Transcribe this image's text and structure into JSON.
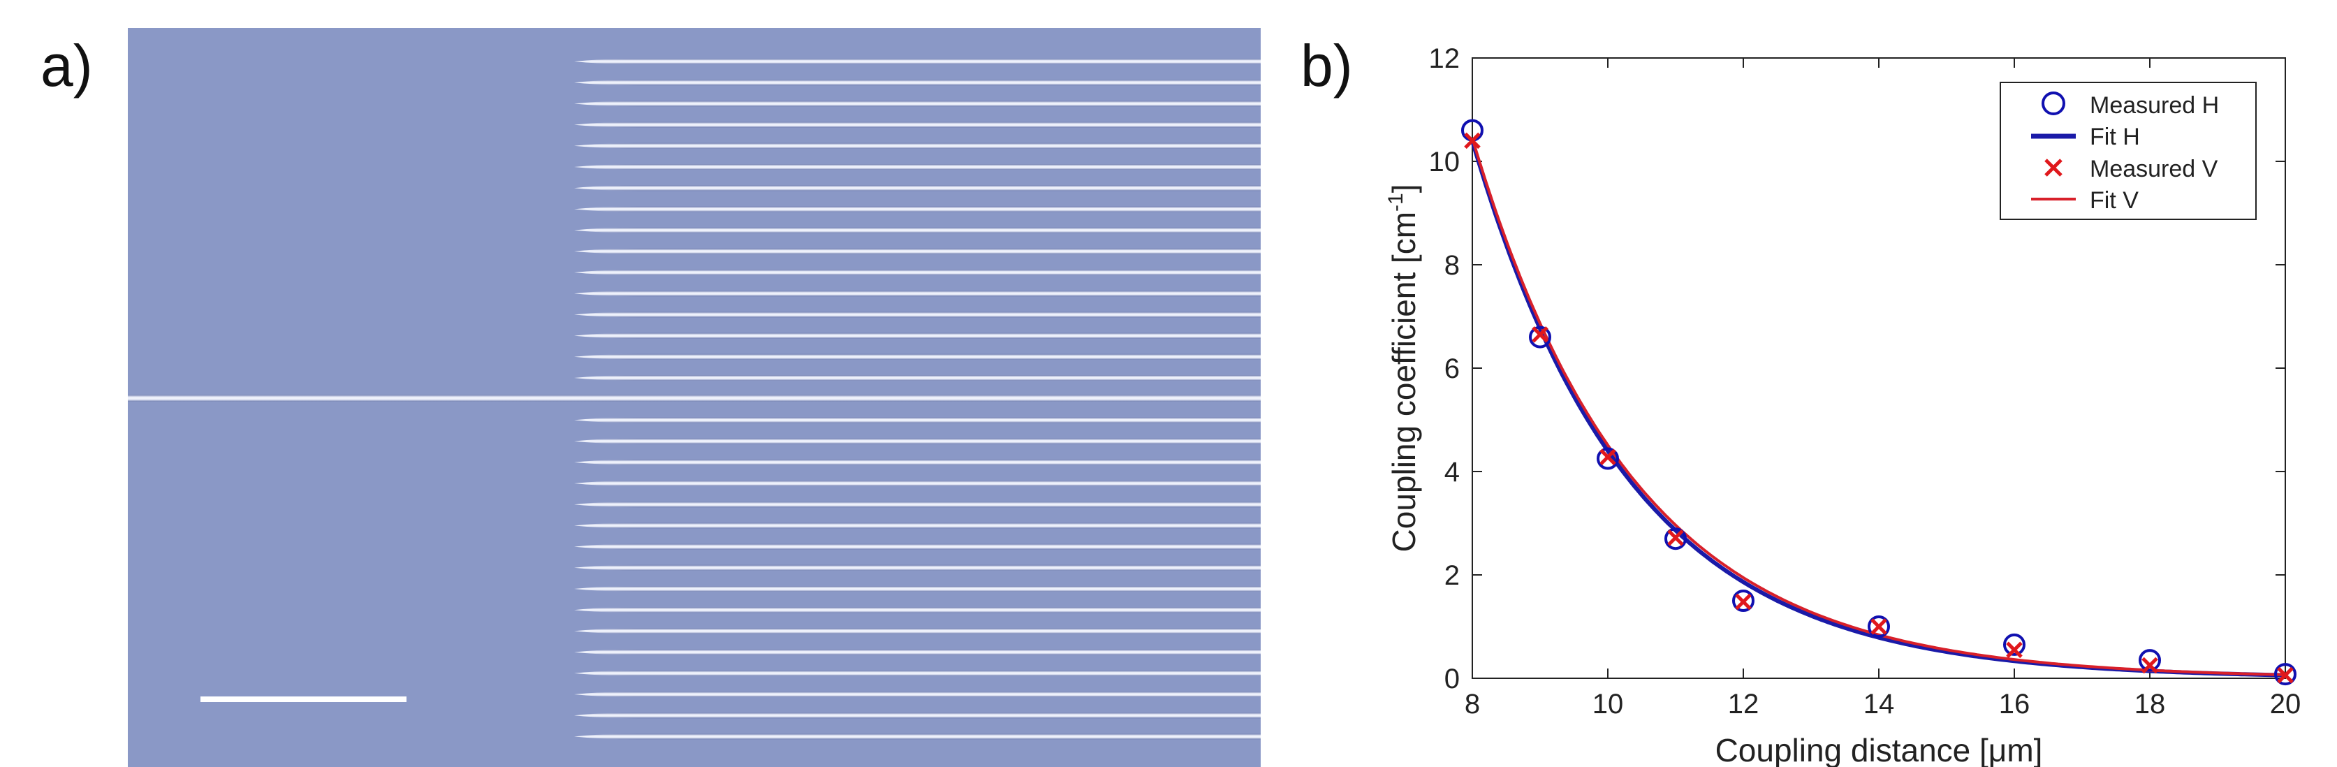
{
  "panel_labels": {
    "a": "a)",
    "b": "b)"
  },
  "colors": {
    "micrograph_bg": "#8a98c6",
    "waveguide_light": "#e8ecf8",
    "waveguide_dark": "#6f7db0",
    "scale_bar": "#ffffff",
    "measured_h": "#1010b0",
    "fit_h": "#1a1aa8",
    "measured_v": "#e0181c",
    "fit_v": "#d8202a",
    "axes": "#222222"
  },
  "chart_data": {
    "type": "scatter",
    "title": "",
    "xlabel": "Coupling distance [μm]",
    "ylabel_main": "Coupling coefficient [cm",
    "ylabel_sup": "-1",
    "ylabel_end": "]",
    "xlim": [
      8,
      20
    ],
    "ylim": [
      0,
      12
    ],
    "xticks": [
      8,
      10,
      12,
      14,
      16,
      18,
      20
    ],
    "yticks": [
      0,
      2,
      4,
      6,
      8,
      10,
      12
    ],
    "legend_position": "top-right",
    "series": [
      {
        "name": "Measured H",
        "kind": "points",
        "marker": "circle",
        "x": [
          8,
          9,
          10,
          11,
          12,
          14,
          16,
          18,
          20
        ],
        "y": [
          10.6,
          6.6,
          4.25,
          2.7,
          1.5,
          1.0,
          0.65,
          0.35,
          0.08
        ]
      },
      {
        "name": "Fit H",
        "kind": "line",
        "model": {
          "a": 10.4,
          "b": 0.43,
          "x0": 8
        }
      },
      {
        "name": "Measured V",
        "kind": "points",
        "marker": "cross",
        "x": [
          8,
          9,
          10,
          11,
          12,
          14,
          16,
          18,
          20
        ],
        "y": [
          10.4,
          6.65,
          4.28,
          2.72,
          1.48,
          1.0,
          0.55,
          0.25,
          0.06
        ]
      },
      {
        "name": "Fit V",
        "kind": "line",
        "model": {
          "a": 10.45,
          "b": 0.42,
          "x0": 8
        }
      }
    ]
  }
}
